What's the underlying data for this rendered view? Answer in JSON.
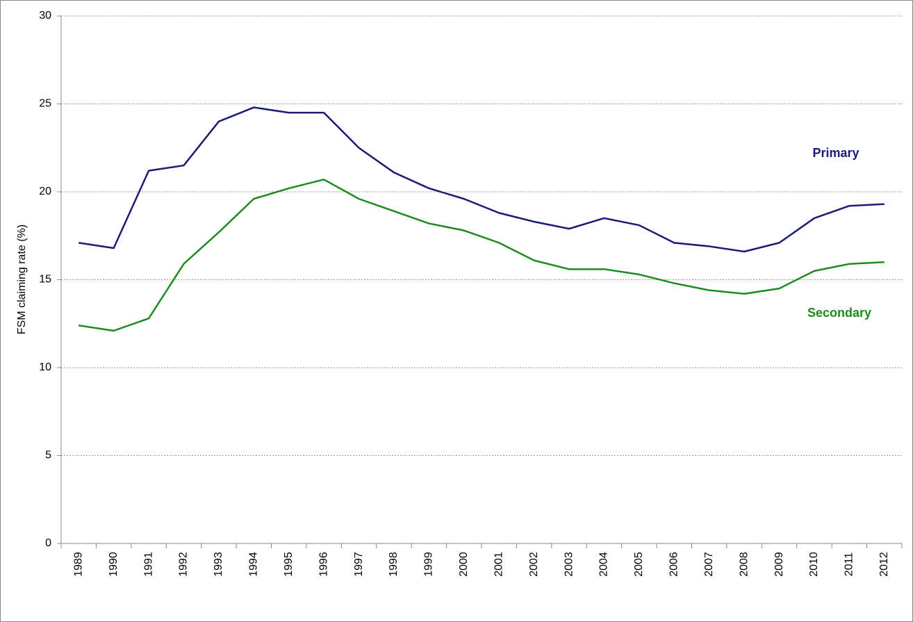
{
  "chart_data": {
    "type": "line",
    "y_label": "FSM claiming rate (%)",
    "categories": [
      "1989",
      "1990",
      "1991",
      "1992",
      "1993",
      "1994",
      "1995",
      "1996",
      "1997",
      "1998",
      "1999",
      "2000",
      "2001",
      "2002",
      "2003",
      "2004",
      "2005",
      "2006",
      "2007",
      "2008",
      "2009",
      "2010",
      "2011",
      "2012"
    ],
    "series": [
      {
        "name": "Primary",
        "color": "#1a1a78",
        "values": [
          17.1,
          16.8,
          21.2,
          21.5,
          24.0,
          24.8,
          24.5,
          24.5,
          22.5,
          21.1,
          20.2,
          19.6,
          18.8,
          18.3,
          17.9,
          18.5,
          18.1,
          17.1,
          16.9,
          16.6,
          17.1,
          18.5,
          19.2,
          19.3
        ]
      },
      {
        "name": "Secondary",
        "color": "#1e8a1e",
        "values": [
          12.4,
          12.1,
          12.8,
          15.9,
          17.7,
          19.6,
          20.2,
          20.7,
          19.6,
          18.9,
          18.2,
          17.8,
          17.1,
          16.1,
          15.6,
          15.6,
          15.3,
          14.8,
          14.4,
          14.2,
          14.5,
          15.5,
          15.9,
          16.0
        ]
      }
    ],
    "ylim": [
      0,
      30
    ],
    "yticks": [
      0,
      5,
      10,
      15,
      20,
      25,
      30
    ],
    "grid": true
  }
}
